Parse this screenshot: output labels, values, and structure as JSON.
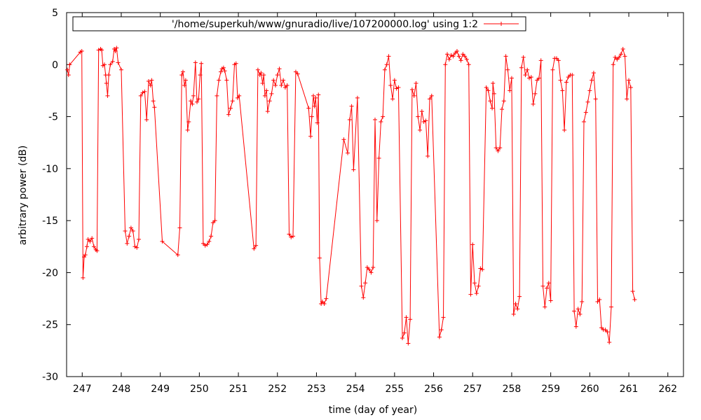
{
  "chart_data": {
    "type": "line",
    "title": "",
    "xlabel": "time (day of year)",
    "ylabel": "arbitrary power (dB)",
    "xlim": [
      246.6,
      262.4
    ],
    "ylim": [
      -30,
      5
    ],
    "x_ticks": [
      247,
      248,
      249,
      250,
      251,
      252,
      253,
      254,
      255,
      256,
      257,
      258,
      259,
      260,
      261,
      262
    ],
    "y_ticks": [
      -30,
      -25,
      -20,
      -15,
      -10,
      -5,
      0,
      5
    ],
    "grid": false,
    "legend_position": "top",
    "series": [
      {
        "name": "'/home/superkuh/www/gnuradio/live/107200000.log' using 1:2",
        "color": "#ff0000",
        "marker": "plus",
        "points": [
          [
            246.62,
            -0.5
          ],
          [
            246.65,
            -1.0
          ],
          [
            246.68,
            0.0
          ],
          [
            246.95,
            1.2
          ],
          [
            246.99,
            1.3
          ],
          [
            247.02,
            -20.5
          ],
          [
            247.05,
            -18.5
          ],
          [
            247.08,
            -18.3
          ],
          [
            247.12,
            -17.5
          ],
          [
            247.15,
            -16.8
          ],
          [
            247.2,
            -17.0
          ],
          [
            247.25,
            -16.7
          ],
          [
            247.3,
            -17.5
          ],
          [
            247.35,
            -17.8
          ],
          [
            247.38,
            -17.9
          ],
          [
            247.42,
            1.4
          ],
          [
            247.47,
            1.5
          ],
          [
            247.5,
            1.4
          ],
          [
            247.53,
            -0.1
          ],
          [
            247.57,
            0.0
          ],
          [
            247.6,
            -1.0
          ],
          [
            247.62,
            -1.8
          ],
          [
            247.65,
            -3.0
          ],
          [
            247.68,
            -1.0
          ],
          [
            247.72,
            0.0
          ],
          [
            247.78,
            0.3
          ],
          [
            247.82,
            1.5
          ],
          [
            247.85,
            1.3
          ],
          [
            247.88,
            1.6
          ],
          [
            247.92,
            0.2
          ],
          [
            248.0,
            -0.5
          ],
          [
            248.1,
            -16.0
          ],
          [
            248.15,
            -17.2
          ],
          [
            248.2,
            -16.5
          ],
          [
            248.25,
            -15.7
          ],
          [
            248.3,
            -16.0
          ],
          [
            248.35,
            -17.5
          ],
          [
            248.4,
            -17.6
          ],
          [
            248.45,
            -16.8
          ],
          [
            248.5,
            -3.0
          ],
          [
            248.55,
            -2.7
          ],
          [
            248.6,
            -2.6
          ],
          [
            248.65,
            -5.3
          ],
          [
            248.7,
            -1.6
          ],
          [
            248.75,
            -2.0
          ],
          [
            248.78,
            -1.5
          ],
          [
            248.82,
            -3.5
          ],
          [
            248.85,
            -4.1
          ],
          [
            249.05,
            -17.0
          ],
          [
            249.45,
            -18.3
          ],
          [
            249.5,
            -15.7
          ],
          [
            249.55,
            -1.0
          ],
          [
            249.58,
            -0.7
          ],
          [
            249.62,
            -2.0
          ],
          [
            249.65,
            -1.5
          ],
          [
            249.7,
            -6.3
          ],
          [
            249.73,
            -5.5
          ],
          [
            249.78,
            -3.5
          ],
          [
            249.82,
            -3.8
          ],
          [
            249.85,
            -3.0
          ],
          [
            249.9,
            0.2
          ],
          [
            249.94,
            -3.6
          ],
          [
            249.98,
            -3.3
          ],
          [
            250.02,
            -1.0
          ],
          [
            250.05,
            0.1
          ],
          [
            250.1,
            -17.2
          ],
          [
            250.15,
            -17.4
          ],
          [
            250.2,
            -17.3
          ],
          [
            250.25,
            -17.0
          ],
          [
            250.3,
            -16.5
          ],
          [
            250.35,
            -15.2
          ],
          [
            250.4,
            -15.0
          ],
          [
            250.45,
            -3.0
          ],
          [
            250.5,
            -1.5
          ],
          [
            250.55,
            -0.7
          ],
          [
            250.58,
            -0.4
          ],
          [
            250.62,
            -0.3
          ],
          [
            250.65,
            -0.6
          ],
          [
            250.7,
            -1.5
          ],
          [
            250.75,
            -4.8
          ],
          [
            250.8,
            -4.2
          ],
          [
            250.85,
            -3.5
          ],
          [
            250.9,
            0.0
          ],
          [
            250.94,
            0.1
          ],
          [
            250.98,
            -3.2
          ],
          [
            251.02,
            -3.0
          ],
          [
            251.4,
            -17.7
          ],
          [
            251.45,
            -17.4
          ],
          [
            251.5,
            -0.5
          ],
          [
            251.55,
            -1.0
          ],
          [
            251.58,
            -0.8
          ],
          [
            251.62,
            -1.8
          ],
          [
            251.65,
            -1.0
          ],
          [
            251.68,
            -3.0
          ],
          [
            251.72,
            -2.5
          ],
          [
            251.75,
            -4.5
          ],
          [
            251.8,
            -3.5
          ],
          [
            251.85,
            -2.8
          ],
          [
            251.9,
            -1.5
          ],
          [
            251.95,
            -2.0
          ],
          [
            252.0,
            -1.0
          ],
          [
            252.05,
            -0.4
          ],
          [
            252.1,
            -2.0
          ],
          [
            252.15,
            -1.5
          ],
          [
            252.2,
            -2.2
          ],
          [
            252.25,
            -2.0
          ],
          [
            252.3,
            -16.3
          ],
          [
            252.35,
            -16.6
          ],
          [
            252.4,
            -16.5
          ],
          [
            252.47,
            -0.7
          ],
          [
            252.52,
            -0.9
          ],
          [
            252.8,
            -4.2
          ],
          [
            252.85,
            -6.9
          ],
          [
            252.88,
            -5.0
          ],
          [
            252.92,
            -3.0
          ],
          [
            252.95,
            -4.0
          ],
          [
            252.98,
            -3.2
          ],
          [
            253.02,
            -5.6
          ],
          [
            253.05,
            -2.9
          ],
          [
            253.08,
            -18.6
          ],
          [
            253.12,
            -23.0
          ],
          [
            253.15,
            -22.8
          ],
          [
            253.2,
            -23.0
          ],
          [
            253.25,
            -22.5
          ],
          [
            253.7,
            -7.2
          ],
          [
            253.8,
            -8.5
          ],
          [
            253.85,
            -5.3
          ],
          [
            253.9,
            -4.0
          ],
          [
            253.95,
            -10.1
          ],
          [
            254.05,
            -3.2
          ],
          [
            254.15,
            -21.3
          ],
          [
            254.2,
            -22.4
          ],
          [
            254.25,
            -21.0
          ],
          [
            254.3,
            -19.5
          ],
          [
            254.35,
            -19.7
          ],
          [
            254.4,
            -20.0
          ],
          [
            254.45,
            -19.5
          ],
          [
            254.5,
            -5.3
          ],
          [
            254.55,
            -15.0
          ],
          [
            254.6,
            -9.0
          ],
          [
            254.65,
            -5.5
          ],
          [
            254.7,
            -5.0
          ],
          [
            254.75,
            -0.5
          ],
          [
            254.8,
            0.0
          ],
          [
            254.85,
            0.8
          ],
          [
            254.9,
            -2.0
          ],
          [
            254.95,
            -3.3
          ],
          [
            255.0,
            -1.5
          ],
          [
            255.05,
            -2.3
          ],
          [
            255.1,
            -2.2
          ],
          [
            255.2,
            -26.3
          ],
          [
            255.25,
            -25.8
          ],
          [
            255.3,
            -24.3
          ],
          [
            255.35,
            -26.8
          ],
          [
            255.4,
            -24.5
          ],
          [
            255.45,
            -2.4
          ],
          [
            255.5,
            -3.0
          ],
          [
            255.55,
            -1.8
          ],
          [
            255.6,
            -5.0
          ],
          [
            255.65,
            -6.3
          ],
          [
            255.7,
            -4.5
          ],
          [
            255.75,
            -5.5
          ],
          [
            255.8,
            -5.4
          ],
          [
            255.85,
            -8.8
          ],
          [
            255.9,
            -3.3
          ],
          [
            255.95,
            -3.0
          ],
          [
            256.15,
            -26.2
          ],
          [
            256.2,
            -25.5
          ],
          [
            256.25,
            -24.3
          ],
          [
            256.3,
            0.0
          ],
          [
            256.35,
            1.0
          ],
          [
            256.4,
            0.5
          ],
          [
            256.45,
            0.9
          ],
          [
            256.5,
            0.8
          ],
          [
            256.55,
            1.1
          ],
          [
            256.6,
            1.3
          ],
          [
            256.65,
            0.8
          ],
          [
            256.7,
            0.4
          ],
          [
            256.75,
            1.0
          ],
          [
            256.8,
            0.8
          ],
          [
            256.85,
            0.5
          ],
          [
            256.9,
            0.0
          ],
          [
            256.95,
            -22.1
          ],
          [
            257.0,
            -17.3
          ],
          [
            257.05,
            -21.0
          ],
          [
            257.1,
            -22.0
          ],
          [
            257.15,
            -21.3
          ],
          [
            257.2,
            -19.6
          ],
          [
            257.25,
            -19.7
          ],
          [
            257.35,
            -2.2
          ],
          [
            257.4,
            -2.5
          ],
          [
            257.45,
            -3.5
          ],
          [
            257.5,
            -4.2
          ],
          [
            257.52,
            -1.8
          ],
          [
            257.55,
            -2.8
          ],
          [
            257.6,
            -8.0
          ],
          [
            257.65,
            -8.3
          ],
          [
            257.7,
            -8.0
          ],
          [
            257.75,
            -4.3
          ],
          [
            257.8,
            -3.5
          ],
          [
            257.85,
            0.8
          ],
          [
            257.9,
            -0.5
          ],
          [
            257.95,
            -2.5
          ],
          [
            258.0,
            -1.3
          ],
          [
            258.05,
            -24.0
          ],
          [
            258.1,
            -23.0
          ],
          [
            258.15,
            -23.5
          ],
          [
            258.2,
            -22.3
          ],
          [
            258.25,
            -0.3
          ],
          [
            258.3,
            0.7
          ],
          [
            258.35,
            -1.0
          ],
          [
            258.4,
            -0.5
          ],
          [
            258.45,
            -1.3
          ],
          [
            258.5,
            -1.2
          ],
          [
            258.55,
            -3.8
          ],
          [
            258.6,
            -2.8
          ],
          [
            258.65,
            -1.5
          ],
          [
            258.7,
            -1.3
          ],
          [
            258.75,
            0.4
          ],
          [
            258.8,
            -21.3
          ],
          [
            258.85,
            -23.3
          ],
          [
            258.9,
            -21.5
          ],
          [
            258.95,
            -21.0
          ],
          [
            259.0,
            -22.7
          ],
          [
            259.05,
            -0.5
          ],
          [
            259.1,
            0.6
          ],
          [
            259.15,
            0.6
          ],
          [
            259.2,
            0.4
          ],
          [
            259.25,
            -1.5
          ],
          [
            259.3,
            -2.5
          ],
          [
            259.35,
            -6.3
          ],
          [
            259.4,
            -1.7
          ],
          [
            259.45,
            -1.2
          ],
          [
            259.5,
            -1.0
          ],
          [
            259.55,
            -1.0
          ],
          [
            259.6,
            -23.7
          ],
          [
            259.65,
            -25.2
          ],
          [
            259.7,
            -23.5
          ],
          [
            259.75,
            -24.0
          ],
          [
            259.8,
            -22.8
          ],
          [
            259.85,
            -5.5
          ],
          [
            259.9,
            -4.6
          ],
          [
            259.95,
            -3.6
          ],
          [
            260.0,
            -2.5
          ],
          [
            260.05,
            -1.5
          ],
          [
            260.1,
            -0.8
          ],
          [
            260.15,
            -3.3
          ],
          [
            260.2,
            -22.8
          ],
          [
            260.25,
            -22.6
          ],
          [
            260.3,
            -25.3
          ],
          [
            260.35,
            -25.5
          ],
          [
            260.4,
            -25.5
          ],
          [
            260.45,
            -25.7
          ],
          [
            260.5,
            -26.7
          ],
          [
            260.55,
            -23.3
          ],
          [
            260.6,
            0.0
          ],
          [
            260.65,
            0.7
          ],
          [
            260.7,
            0.5
          ],
          [
            260.75,
            0.7
          ],
          [
            260.8,
            1.0
          ],
          [
            260.85,
            1.5
          ],
          [
            260.9,
            0.8
          ],
          [
            260.95,
            -3.3
          ],
          [
            261.0,
            -1.5
          ],
          [
            261.05,
            -2.2
          ],
          [
            261.1,
            -21.8
          ],
          [
            261.15,
            -22.6
          ]
        ]
      }
    ]
  }
}
